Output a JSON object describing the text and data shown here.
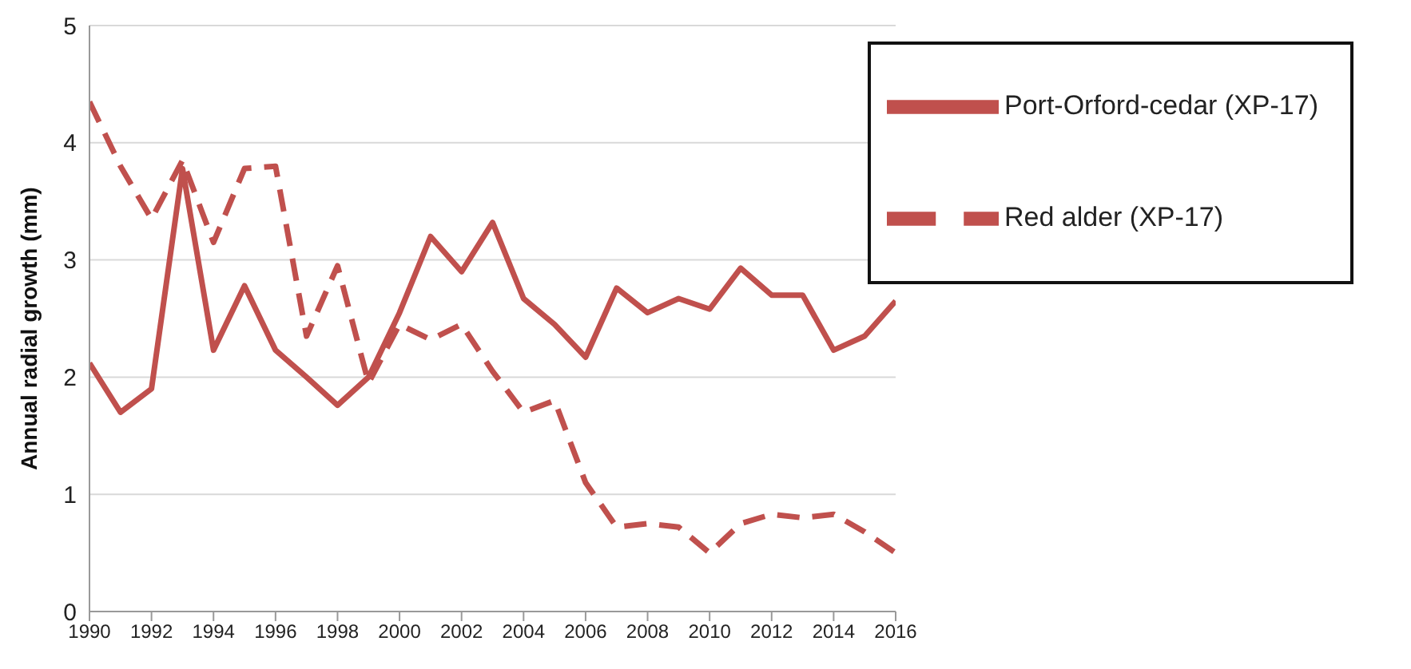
{
  "chart_data": {
    "type": "line",
    "ylabel": "Annual radial growth (mm)",
    "x": [
      1990,
      1991,
      1992,
      1993,
      1994,
      1995,
      1996,
      1997,
      1998,
      1999,
      2000,
      2001,
      2002,
      2003,
      2004,
      2005,
      2006,
      2007,
      2008,
      2009,
      2010,
      2011,
      2012,
      2013,
      2014,
      2015,
      2016
    ],
    "series": [
      {
        "name": "Port-Orford-cedar (XP-17)",
        "color": "#c0504d",
        "line_style": "solid",
        "values": [
          2.12,
          1.7,
          1.9,
          3.78,
          2.23,
          2.78,
          2.23,
          2.0,
          1.76,
          2.0,
          2.55,
          3.2,
          2.9,
          3.32,
          2.67,
          2.45,
          2.17,
          2.76,
          2.55,
          2.67,
          2.58,
          2.93,
          2.7,
          2.7,
          2.23,
          2.35,
          2.65
        ]
      },
      {
        "name": "Red alder (XP-17)",
        "color": "#c0504d",
        "line_style": "dashed",
        "values": [
          4.35,
          3.8,
          3.35,
          3.85,
          3.15,
          3.78,
          3.8,
          2.35,
          2.95,
          1.95,
          2.45,
          2.32,
          2.45,
          2.05,
          1.7,
          1.8,
          1.1,
          0.72,
          0.75,
          0.72,
          0.5,
          0.75,
          0.83,
          0.8,
          0.83,
          0.68,
          0.5
        ]
      }
    ],
    "xlim": [
      1990,
      2016
    ],
    "xticks": [
      1990,
      1992,
      1994,
      1996,
      1998,
      2000,
      2002,
      2004,
      2006,
      2008,
      2010,
      2012,
      2014,
      2016
    ],
    "ylim": [
      0,
      5
    ],
    "yticks": [
      0,
      1,
      2,
      3,
      4,
      5
    ],
    "grid": "y",
    "legend": "top right",
    "marker": "none"
  }
}
